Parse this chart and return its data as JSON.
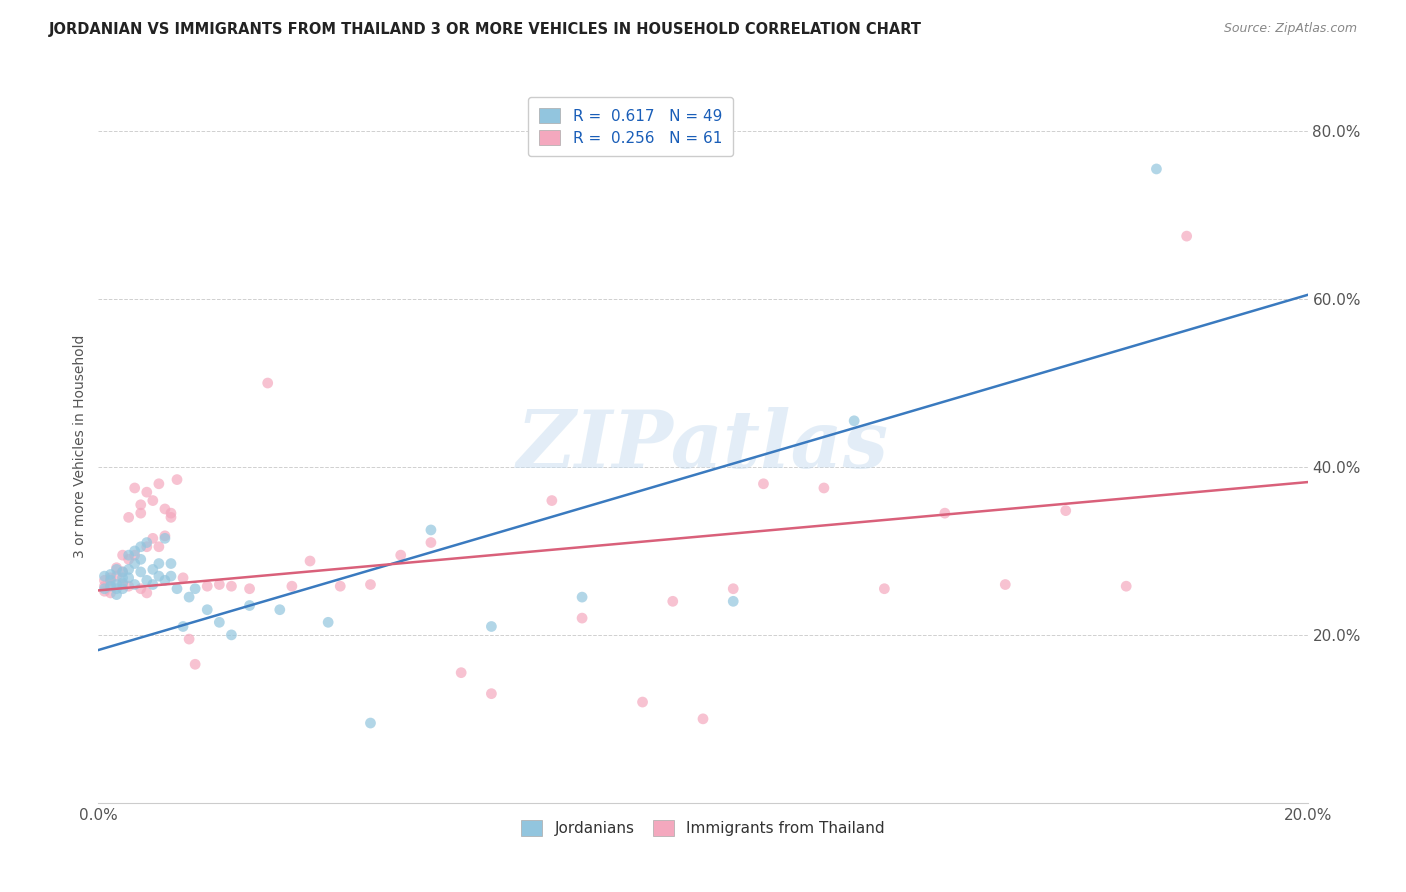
{
  "title": "JORDANIAN VS IMMIGRANTS FROM THAILAND 3 OR MORE VEHICLES IN HOUSEHOLD CORRELATION CHART",
  "source": "Source: ZipAtlas.com",
  "ylabel": "3 or more Vehicles in Household",
  "legend_label1": "Jordanians",
  "legend_label2": "Immigrants from Thailand",
  "r1": 0.617,
  "n1": 49,
  "r2": 0.256,
  "n2": 61,
  "xlim": [
    0.0,
    0.2
  ],
  "ylim": [
    0.0,
    0.85
  ],
  "xticks": [
    0.0,
    0.05,
    0.1,
    0.15,
    0.2
  ],
  "xticklabels": [
    "0.0%",
    "",
    "",
    "",
    "20.0%"
  ],
  "yticks": [
    0.0,
    0.2,
    0.4,
    0.6,
    0.8
  ],
  "yticklabels": [
    "",
    "20.0%",
    "40.0%",
    "60.0%",
    "80.0%"
  ],
  "color_blue": "#92c5de",
  "color_pink": "#f4a8be",
  "line_blue": "#3a7abf",
  "line_pink": "#d9607a",
  "scatter_alpha": 0.7,
  "scatter_size": 60,
  "watermark": "ZIPatlas",
  "blue_x": [
    0.001,
    0.001,
    0.002,
    0.002,
    0.002,
    0.003,
    0.003,
    0.003,
    0.003,
    0.004,
    0.004,
    0.004,
    0.004,
    0.005,
    0.005,
    0.005,
    0.006,
    0.006,
    0.006,
    0.007,
    0.007,
    0.007,
    0.008,
    0.008,
    0.009,
    0.009,
    0.01,
    0.01,
    0.011,
    0.011,
    0.012,
    0.012,
    0.013,
    0.014,
    0.015,
    0.016,
    0.018,
    0.02,
    0.022,
    0.025,
    0.03,
    0.038,
    0.045,
    0.055,
    0.065,
    0.08,
    0.105,
    0.125,
    0.175
  ],
  "blue_y": [
    0.255,
    0.27,
    0.258,
    0.272,
    0.265,
    0.248,
    0.26,
    0.278,
    0.255,
    0.268,
    0.262,
    0.275,
    0.255,
    0.268,
    0.278,
    0.295,
    0.26,
    0.285,
    0.3,
    0.275,
    0.29,
    0.305,
    0.265,
    0.31,
    0.26,
    0.278,
    0.27,
    0.285,
    0.265,
    0.315,
    0.27,
    0.285,
    0.255,
    0.21,
    0.245,
    0.255,
    0.23,
    0.215,
    0.2,
    0.235,
    0.23,
    0.215,
    0.095,
    0.325,
    0.21,
    0.245,
    0.24,
    0.455,
    0.755
  ],
  "pink_x": [
    0.001,
    0.001,
    0.001,
    0.002,
    0.002,
    0.002,
    0.003,
    0.003,
    0.004,
    0.004,
    0.004,
    0.005,
    0.005,
    0.005,
    0.006,
    0.006,
    0.007,
    0.007,
    0.007,
    0.008,
    0.008,
    0.008,
    0.009,
    0.009,
    0.01,
    0.01,
    0.011,
    0.011,
    0.012,
    0.012,
    0.013,
    0.014,
    0.015,
    0.016,
    0.018,
    0.02,
    0.022,
    0.025,
    0.028,
    0.032,
    0.035,
    0.04,
    0.045,
    0.05,
    0.055,
    0.06,
    0.065,
    0.075,
    0.08,
    0.09,
    0.095,
    0.1,
    0.105,
    0.11,
    0.12,
    0.13,
    0.14,
    0.15,
    0.16,
    0.17,
    0.18
  ],
  "pink_y": [
    0.252,
    0.258,
    0.265,
    0.25,
    0.26,
    0.268,
    0.27,
    0.28,
    0.26,
    0.295,
    0.275,
    0.29,
    0.34,
    0.258,
    0.375,
    0.295,
    0.345,
    0.355,
    0.255,
    0.305,
    0.37,
    0.25,
    0.315,
    0.36,
    0.38,
    0.305,
    0.35,
    0.318,
    0.345,
    0.34,
    0.385,
    0.268,
    0.195,
    0.165,
    0.258,
    0.26,
    0.258,
    0.255,
    0.5,
    0.258,
    0.288,
    0.258,
    0.26,
    0.295,
    0.31,
    0.155,
    0.13,
    0.36,
    0.22,
    0.12,
    0.24,
    0.1,
    0.255,
    0.38,
    0.375,
    0.255,
    0.345,
    0.26,
    0.348,
    0.258,
    0.675
  ],
  "blue_line_x": [
    0.0,
    0.2
  ],
  "blue_line_y": [
    0.182,
    0.605
  ],
  "pink_line_x": [
    0.0,
    0.2
  ],
  "pink_line_y": [
    0.253,
    0.382
  ]
}
